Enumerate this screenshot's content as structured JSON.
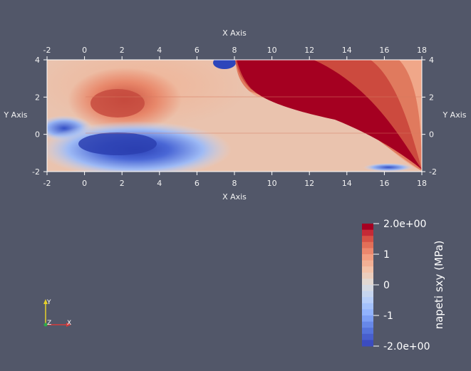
{
  "chart_data": {
    "type": "heatmap",
    "title": "",
    "xlabel": "X Axis",
    "ylabel": "Y Axis",
    "x_range": [
      -2,
      18
    ],
    "y_range": [
      -2,
      4
    ],
    "x_ticks": [
      -2,
      0,
      2,
      4,
      6,
      8,
      10,
      12,
      14,
      16,
      18
    ],
    "y_ticks": [
      -2,
      0,
      2,
      4
    ],
    "x_tick_labels": [
      "-2",
      "0",
      "2",
      "4",
      "6",
      "8",
      "10",
      "12",
      "14",
      "16",
      "18"
    ],
    "y_tick_labels": [
      "-2",
      "0",
      "2",
      "4"
    ],
    "colorbar": {
      "title": "napeti sxy (MPa)",
      "min": -2.0,
      "max": 2.0,
      "levels": 20,
      "tick_labels": [
        "2.0e+00",
        "1",
        "0",
        "-1",
        "-2.0e+00"
      ],
      "tick_values": [
        2,
        1,
        0,
        -1,
        -2
      ],
      "colormap": [
        "#3b4cc0",
        "#5a7ae0",
        "#8db0fe",
        "#b9d0f9",
        "#dddddd",
        "#f3c4ab",
        "#f39a7c",
        "#dc5f4b",
        "#b40426"
      ],
      "over_color": "#a50021"
    },
    "orientation_axes": {
      "x": "X",
      "y": "Y",
      "z": "Z"
    }
  },
  "colors": {
    "background": "#525769",
    "frame": "#ffffff",
    "axis_x": "#d43b3b",
    "axis_y": "#e6d12a",
    "axis_z": "#2ea84a"
  }
}
